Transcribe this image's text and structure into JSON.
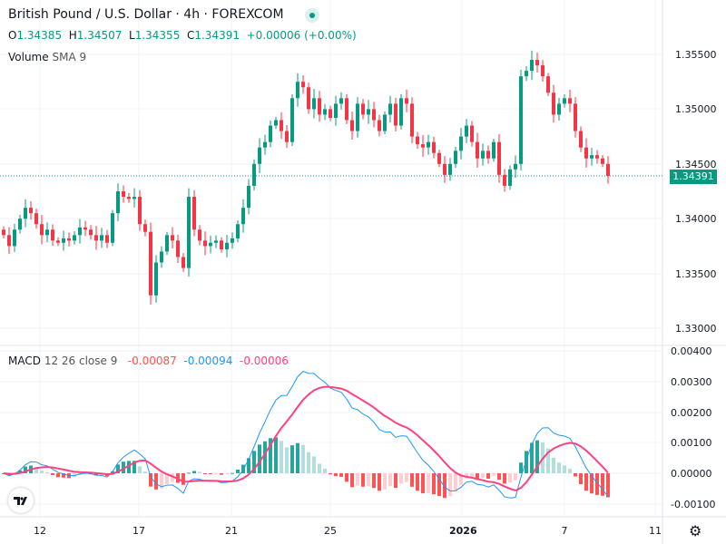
{
  "header": {
    "title": "British Pound / U.S. Dollar · 4h · FOREXCOM",
    "ohlc": {
      "o_label": "O",
      "o": "1.34385",
      "h_label": "H",
      "h": "1.34507",
      "l_label": "L",
      "l": "1.34355",
      "c_label": "C",
      "c": "1.34391",
      "change": "+0.00006 (+0.00%)"
    },
    "volume_label": "Volume",
    "volume_params": "SMA 9"
  },
  "macd_legend": {
    "label": "MACD",
    "params": "12 26 close 9",
    "hist": "-0.00087",
    "macd": "-0.00094",
    "signal": "-0.00006"
  },
  "current_price": "1.34391",
  "price_axis": [
    "1.35500",
    "1.35000",
    "1.34500",
    "1.34000",
    "1.33500",
    "1.33000"
  ],
  "macd_axis": [
    "0.00400",
    "0.00300",
    "0.00200",
    "0.00100",
    "0.00000",
    "-0.00100"
  ],
  "time_axis": [
    "12",
    "17",
    "21",
    "25",
    "2026",
    "7",
    "11"
  ],
  "logo": "TV",
  "colors": {
    "up": "#089981",
    "down": "#f23645",
    "macd": "#2196f3",
    "signal": "#ff4081",
    "hist_up_strong": "#26a69a",
    "hist_up_weak": "#b2dfdb",
    "hist_dn_weak": "#ffcdd2",
    "hist_dn_strong": "#ff5252"
  },
  "chart_data": {
    "type": "candlestick",
    "interval": "4h",
    "price_range": [
      1.33,
      1.355
    ],
    "wick": 0.0006,
    "closes": [
      1.3385,
      1.3375,
      1.339,
      1.34,
      1.341,
      1.3405,
      1.3395,
      1.3385,
      1.339,
      1.338,
      1.3378,
      1.3382,
      1.338,
      1.3385,
      1.3392,
      1.339,
      1.3385,
      1.338,
      1.3385,
      1.3378,
      1.3405,
      1.3425,
      1.342,
      1.3418,
      1.342,
      1.3395,
      1.3388,
      1.333,
      1.336,
      1.337,
      1.3385,
      1.338,
      1.3365,
      1.3355,
      1.342,
      1.339,
      1.338,
      1.3375,
      1.3378,
      1.338,
      1.3372,
      1.3378,
      1.3382,
      1.3395,
      1.341,
      1.343,
      1.345,
      1.3465,
      1.347,
      1.3485,
      1.349,
      1.348,
      1.347,
      1.351,
      1.3525,
      1.352,
      1.35,
      1.351,
      1.3495,
      1.35,
      1.3492,
      1.3505,
      1.351,
      1.349,
      1.348,
      1.3505,
      1.3495,
      1.35,
      1.349,
      1.348,
      1.3495,
      1.3505,
      1.3485,
      1.351,
      1.3505,
      1.3475,
      1.3468,
      1.3465,
      1.347,
      1.346,
      1.345,
      1.344,
      1.345,
      1.3462,
      1.3475,
      1.3485,
      1.347,
      1.3455,
      1.3462,
      1.3455,
      1.347,
      1.344,
      1.343,
      1.3445,
      1.345,
      1.353,
      1.3535,
      1.3545,
      1.354,
      1.353,
      1.3515,
      1.3495,
      1.3505,
      1.351,
      1.3505,
      1.348,
      1.3465,
      1.3455,
      1.3458,
      1.3455,
      1.345,
      1.34391
    ]
  }
}
